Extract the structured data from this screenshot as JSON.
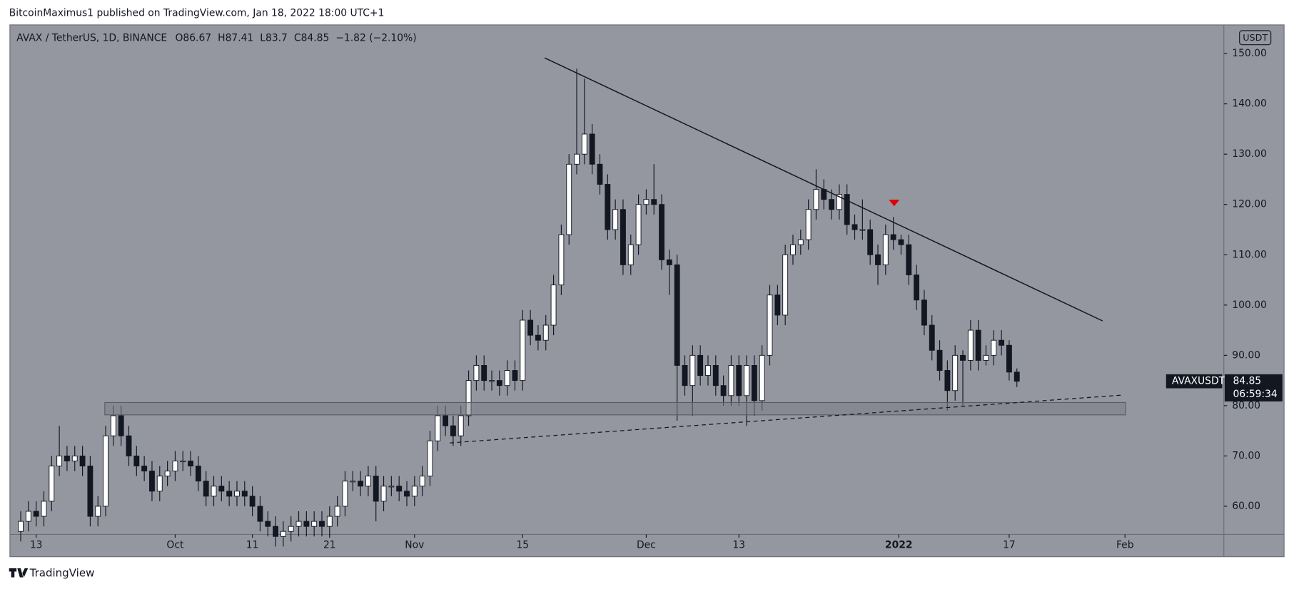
{
  "publisher": "BitcoinMaximus1 published on TradingView.com, Jan 18, 2022 18:00 UTC+1",
  "footer": "TradingView",
  "chart_data": {
    "type": "candlestick",
    "title": "AVAX / TetherUS, 1D, BINANCE",
    "change": "−1.82 (−2.10%)",
    "currency": "USDT",
    "ticker": "AVAXUSDT",
    "countdown": "06:59:34",
    "up_color": "#ffffff",
    "down_color": "#131722",
    "background": "#94979f",
    "grid": false,
    "ylim": [
      54.4,
      155.7
    ],
    "yticks": [
      {
        "value": 60,
        "label": "60.00"
      },
      {
        "value": 70,
        "label": "70.00"
      },
      {
        "value": 80,
        "label": "80.00"
      },
      {
        "value": 90,
        "label": "90.00"
      },
      {
        "value": 100,
        "label": "100.00"
      },
      {
        "value": 110,
        "label": "110.00"
      },
      {
        "value": 120,
        "label": "120.00"
      },
      {
        "value": 130,
        "label": "130.00"
      },
      {
        "value": 140,
        "label": "140.00"
      },
      {
        "value": 150,
        "label": "150.00"
      }
    ],
    "xlim": [
      -1.4,
      155.8
    ],
    "xticks": [
      {
        "value": 2,
        "label": "13"
      },
      {
        "value": 20,
        "label": "Oct"
      },
      {
        "value": 30,
        "label": "11"
      },
      {
        "value": 40,
        "label": "21"
      },
      {
        "value": 51,
        "label": "Nov"
      },
      {
        "value": 65,
        "label": "15"
      },
      {
        "value": 81,
        "label": "Dec"
      },
      {
        "value": 93,
        "label": "13"
      },
      {
        "value": 113.7,
        "label": "2022"
      },
      {
        "value": 128,
        "label": "17"
      },
      {
        "value": 143,
        "label": "Feb"
      }
    ],
    "open": [
      55,
      57,
      59,
      58,
      61,
      68,
      70,
      69,
      70,
      68,
      58,
      60,
      74,
      78,
      74,
      70,
      68,
      67,
      63,
      66,
      67,
      69,
      69,
      68,
      65,
      62,
      64,
      63,
      62,
      63,
      62,
      60,
      57,
      56,
      54,
      55,
      56,
      57,
      56,
      57,
      56,
      58,
      60,
      65,
      65,
      64,
      66,
      61,
      64,
      64,
      63,
      62,
      64,
      66,
      73,
      78,
      76,
      74,
      78,
      85,
      88,
      85,
      85,
      84,
      87,
      85,
      97,
      94,
      93,
      96,
      104,
      114,
      128,
      130,
      134,
      128,
      124,
      115,
      119,
      108,
      112,
      120,
      121,
      120,
      109,
      108,
      88,
      84,
      90,
      86,
      88,
      84,
      82,
      88,
      82,
      88,
      81,
      90,
      102,
      98,
      110,
      112,
      113,
      119,
      123,
      121,
      119,
      122,
      116,
      115,
      115,
      110,
      108,
      114,
      113,
      112,
      106,
      101,
      96,
      91,
      87,
      83,
      90,
      89,
      95,
      89,
      90,
      93,
      92,
      86.67
    ],
    "high": [
      59,
      61,
      61,
      63,
      70,
      76,
      72,
      72,
      72,
      70,
      62,
      76,
      80,
      80,
      76,
      72,
      70,
      69,
      68,
      69,
      71,
      71,
      71,
      70,
      67,
      66,
      66,
      65,
      65,
      65,
      64,
      62,
      59,
      58,
      57,
      58,
      59,
      59,
      59,
      59,
      60,
      62,
      67,
      67,
      67,
      68,
      68,
      66,
      66,
      66,
      65,
      66,
      68,
      75,
      80,
      80,
      78,
      80,
      87,
      90,
      90,
      87,
      87,
      89,
      89,
      99,
      99,
      96,
      98,
      106,
      116,
      130,
      147,
      145,
      136,
      130,
      126,
      121,
      121,
      114,
      122,
      123,
      128,
      122,
      111,
      110,
      90,
      92,
      92,
      90,
      90,
      86,
      90,
      90,
      90,
      90,
      92,
      104,
      104,
      112,
      114,
      115,
      121,
      127,
      125,
      123,
      124,
      124,
      118,
      121,
      117,
      112,
      116,
      117.5,
      114,
      114,
      108,
      103,
      98,
      93,
      89,
      92,
      91,
      97,
      97,
      92,
      95,
      95,
      93,
      87.41
    ],
    "low": [
      53,
      55,
      56,
      56,
      59,
      66,
      67,
      67,
      66,
      56,
      56,
      58,
      72,
      72,
      68,
      66,
      65,
      61,
      61,
      64,
      65,
      67,
      66,
      63,
      60,
      60,
      61,
      60,
      60,
      60,
      58,
      55,
      54,
      52,
      52,
      53,
      54,
      54,
      54,
      54,
      54,
      56,
      58,
      63,
      62,
      62,
      57,
      59,
      62,
      61,
      60,
      60,
      62,
      64,
      71,
      74,
      72,
      72,
      76,
      83,
      83,
      83,
      82,
      82,
      83,
      83,
      92,
      91,
      91,
      94,
      102,
      112,
      126,
      128,
      126,
      122,
      113,
      113,
      106,
      106,
      110,
      118,
      118,
      107,
      102,
      77,
      82,
      78,
      84,
      84,
      82,
      80,
      80,
      80,
      76,
      78,
      79,
      88,
      96,
      96,
      108,
      110,
      111,
      117,
      119,
      117,
      117,
      114,
      113,
      113,
      108,
      104,
      106,
      111,
      110,
      104,
      99,
      94,
      89,
      85,
      79,
      81,
      80,
      87,
      87,
      88,
      88,
      90,
      85,
      83.7
    ],
    "close": [
      57,
      59,
      58,
      61,
      68,
      70,
      69,
      70,
      68,
      58,
      60,
      74,
      78,
      74,
      70,
      68,
      67,
      63,
      66,
      67,
      69,
      69,
      68,
      65,
      62,
      64,
      63,
      62,
      63,
      62,
      60,
      57,
      56,
      54,
      55,
      56,
      57,
      56,
      57,
      56,
      58,
      60,
      65,
      65,
      64,
      66,
      61,
      64,
      64,
      63,
      62,
      64,
      66,
      73,
      78,
      76,
      74,
      78,
      85,
      88,
      85,
      85,
      84,
      87,
      85,
      97,
      94,
      93,
      96,
      104,
      114,
      128,
      130,
      134,
      128,
      124,
      115,
      119,
      108,
      112,
      120,
      121,
      120,
      109,
      108,
      88,
      84,
      90,
      86,
      88,
      84,
      82,
      88,
      82,
      88,
      81,
      90,
      102,
      98,
      110,
      112,
      113,
      119,
      123,
      121,
      119,
      122,
      116,
      115,
      115,
      110,
      108,
      114,
      113,
      112,
      106,
      101,
      96,
      91,
      87,
      83,
      90,
      89,
      95,
      89,
      90,
      93,
      92,
      86.67,
      84.85
    ]
  }
}
